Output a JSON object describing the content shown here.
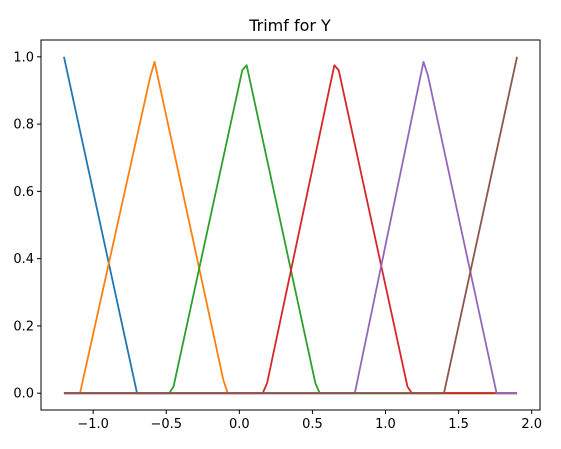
{
  "chart_data": {
    "type": "line",
    "title": "Trimf for Y",
    "xlabel": "",
    "ylabel": "",
    "xlim": [
      -1.357,
      2.057
    ],
    "ylim": [
      -0.05,
      1.05
    ],
    "xticks": [
      -1.0,
      -0.5,
      0.0,
      0.5,
      1.0,
      1.5,
      2.0
    ],
    "xtick_labels": [
      "−1.0",
      "−0.5",
      "0.0",
      "0.5",
      "1.0",
      "1.5",
      "2.0"
    ],
    "yticks": [
      0.0,
      0.2,
      0.4,
      0.6,
      0.8,
      1.0
    ],
    "ytick_labels": [
      "0.0",
      "0.2",
      "0.4",
      "0.6",
      "0.8",
      "1.0"
    ],
    "grid": false,
    "series": [
      {
        "color": "#1f77b4",
        "x": [
          -1.2,
          -0.7,
          1.9
        ],
        "y": [
          1.0,
          0.0,
          0.0
        ]
      },
      {
        "color": "#ff7f0e",
        "x": [
          -1.2,
          -1.09,
          -0.61,
          -0.58,
          -0.11,
          -0.08,
          1.9
        ],
        "y": [
          0.0,
          0.0,
          0.94,
          0.985,
          0.04,
          0.0,
          0.0
        ]
      },
      {
        "color": "#2ca02c",
        "x": [
          -1.2,
          -0.48,
          -0.45,
          0.02,
          0.05,
          0.52,
          0.55,
          1.9
        ],
        "y": [
          0.0,
          0.0,
          0.02,
          0.96,
          0.975,
          0.03,
          0.0,
          0.0
        ]
      },
      {
        "color": "#d62728",
        "x": [
          -1.2,
          0.16,
          0.19,
          0.65,
          0.68,
          1.15,
          1.18,
          1.9
        ],
        "y": [
          0.0,
          0.0,
          0.03,
          0.975,
          0.96,
          0.02,
          0.0,
          0.0
        ]
      },
      {
        "color": "#9467bd",
        "x": [
          -1.2,
          0.79,
          1.26,
          1.29,
          1.76,
          1.9
        ],
        "y": [
          0.0,
          0.0,
          0.985,
          0.945,
          0.0,
          0.0
        ]
      },
      {
        "color": "#8c564b",
        "x": [
          -1.2,
          1.4,
          1.9
        ],
        "y": [
          0.0,
          0.0,
          1.0
        ]
      }
    ]
  }
}
